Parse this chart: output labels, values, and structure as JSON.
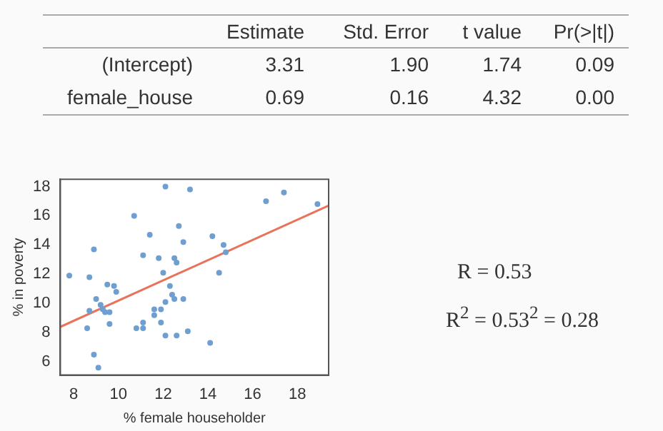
{
  "chart_data": [
    {
      "type": "other",
      "categories": [
        "Estimate",
        "Std. Error",
        "t value",
        "Pr(>|t|)"
      ],
      "y_categories": [
        "(Intercept)",
        "female_house"
      ],
      "cell_labels": [
        [
          "3.31",
          "1.90",
          "1.74",
          "0.09"
        ],
        [
          "0.69",
          "0.16",
          "4.32",
          "0.00"
        ]
      ]
    },
    {
      "type": "scatter",
      "xlabel": "% female householder",
      "ylabel": "% in poverty",
      "xlim": [
        7.4,
        19.4
      ],
      "ylim": [
        5.1,
        18.5
      ],
      "xticks": [
        8,
        10,
        12,
        14,
        16,
        18
      ],
      "yticks": [
        6,
        8,
        10,
        12,
        14,
        16,
        18
      ],
      "grid": false,
      "legend": false,
      "marker": "circle",
      "series": [
        {
          "type": "scatter",
          "color": "#6f9fd0",
          "x": [
            7.8,
            8.7,
            8.9,
            8.6,
            8.7,
            9.0,
            9.2,
            9.3,
            9.4,
            9.6,
            9.5,
            9.8,
            9.9,
            9.6,
            8.9,
            9.1,
            10.7,
            10.8,
            11.1,
            11.1,
            11.1,
            11.4,
            11.6,
            11.6,
            11.8,
            11.9,
            11.9,
            12.0,
            12.1,
            12.1,
            12.1,
            12.3,
            12.4,
            12.5,
            12.5,
            12.6,
            12.6,
            12.7,
            12.9,
            12.9,
            13.2,
            13.1,
            14.1,
            14.2,
            14.5,
            14.7,
            14.8,
            16.6,
            17.4,
            18.9
          ],
          "values": [
            11.9,
            11.8,
            13.7,
            8.3,
            9.5,
            10.3,
            9.9,
            9.6,
            9.4,
            9.4,
            11.3,
            11.2,
            10.8,
            8.6,
            6.5,
            5.6,
            16.0,
            8.3,
            8.3,
            8.7,
            13.3,
            14.7,
            9.6,
            9.2,
            13.1,
            9.6,
            8.7,
            12.1,
            7.8,
            10.1,
            18.0,
            11.2,
            10.6,
            10.3,
            13.1,
            12.8,
            7.8,
            15.3,
            14.2,
            10.3,
            17.8,
            8.1,
            7.3,
            14.6,
            12.1,
            14.0,
            13.5,
            17.0,
            17.6,
            16.8
          ]
        },
        {
          "type": "line",
          "color": "#e8735a",
          "marker": "none",
          "x": [
            7.4,
            19.4
          ],
          "values": [
            8.4,
            16.7
          ]
        }
      ]
    },
    {
      "type": "other",
      "annotations": [
        "R = 0.53",
        "R$^{2}$ = 0.53$^{2}$ = 0.28"
      ]
    }
  ]
}
